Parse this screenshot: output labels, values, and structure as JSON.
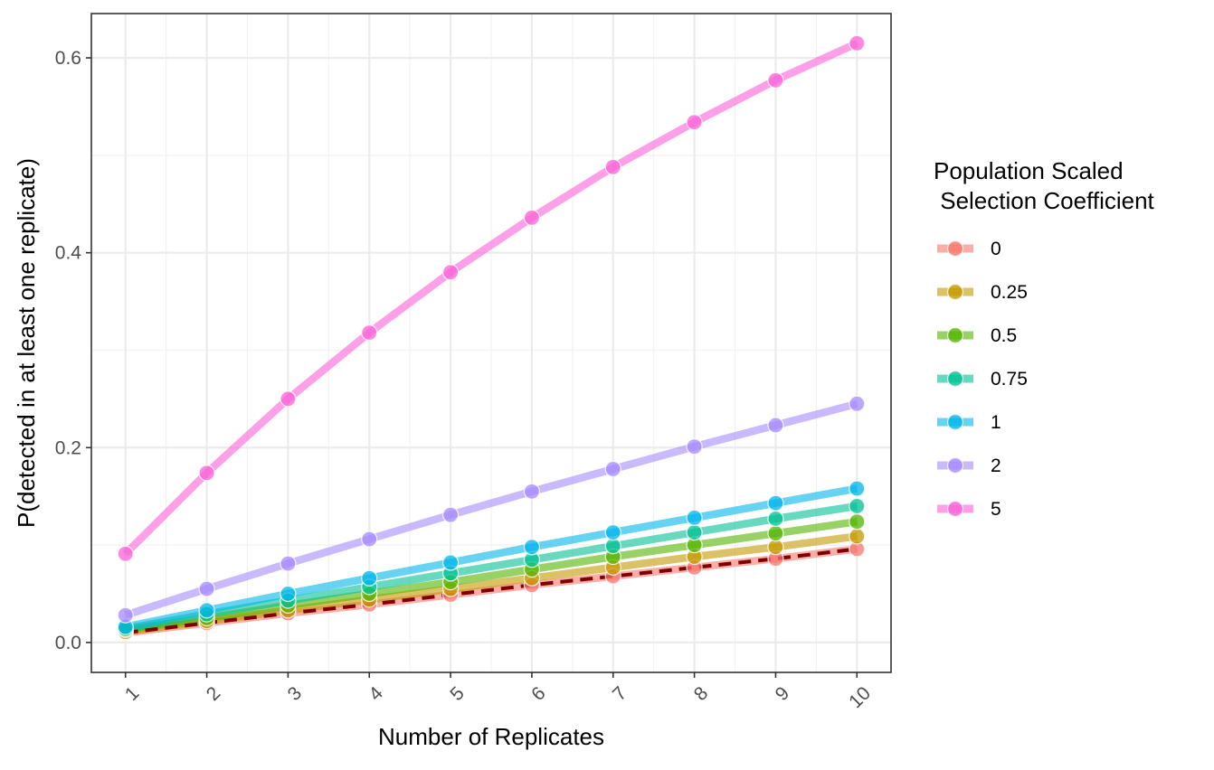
{
  "chart_data": {
    "type": "line",
    "xlabel": "Number of Replicates",
    "ylabel": "P(detected in at least one replicate)",
    "x": [
      1,
      2,
      3,
      4,
      5,
      6,
      7,
      8,
      9,
      10
    ],
    "xlim": [
      0.58,
      10.42
    ],
    "ylim": [
      -0.0307,
      0.6455
    ],
    "y_ticks": [
      0.0,
      0.2,
      0.4,
      0.6
    ],
    "y_tick_labels": [
      "0.0",
      "0.2",
      "0.4",
      "0.6"
    ],
    "x_tick_labels": [
      "1",
      "2",
      "3",
      "4",
      "5",
      "6",
      "7",
      "8",
      "9",
      "10"
    ],
    "grid": true,
    "legend": {
      "title_lines": [
        "Population Scaled",
        " Selection Coefficient"
      ],
      "position": "right"
    },
    "series": [
      {
        "name": "0",
        "color": "#F8766D",
        "values": [
          0.01,
          0.02,
          0.03,
          0.039,
          0.049,
          0.059,
          0.068,
          0.077,
          0.086,
          0.096
        ]
      },
      {
        "name": "0.25",
        "color": "#C49A00",
        "values": [
          0.011,
          0.022,
          0.033,
          0.044,
          0.055,
          0.066,
          0.077,
          0.088,
          0.098,
          0.109
        ]
      },
      {
        "name": "0.5",
        "color": "#53B400",
        "values": [
          0.013,
          0.025,
          0.038,
          0.05,
          0.062,
          0.075,
          0.088,
          0.1,
          0.112,
          0.124
        ]
      },
      {
        "name": "0.75",
        "color": "#00C094",
        "values": [
          0.014,
          0.029,
          0.043,
          0.057,
          0.071,
          0.085,
          0.099,
          0.113,
          0.127,
          0.14
        ]
      },
      {
        "name": "1",
        "color": "#00B6EB",
        "values": [
          0.016,
          0.033,
          0.05,
          0.066,
          0.082,
          0.098,
          0.113,
          0.128,
          0.143,
          0.158
        ]
      },
      {
        "name": "2",
        "color": "#A58AFF",
        "values": [
          0.028,
          0.055,
          0.081,
          0.106,
          0.131,
          0.155,
          0.178,
          0.201,
          0.223,
          0.245
        ]
      },
      {
        "name": "5",
        "color": "#FB61D7",
        "values": [
          0.091,
          0.174,
          0.25,
          0.318,
          0.38,
          0.436,
          0.488,
          0.534,
          0.577,
          0.615
        ]
      }
    ],
    "reference_line": {
      "color": "#7F0000",
      "style": "dashed",
      "values": [
        0.01,
        0.02,
        0.03,
        0.039,
        0.049,
        0.059,
        0.068,
        0.077,
        0.086,
        0.096
      ]
    }
  }
}
